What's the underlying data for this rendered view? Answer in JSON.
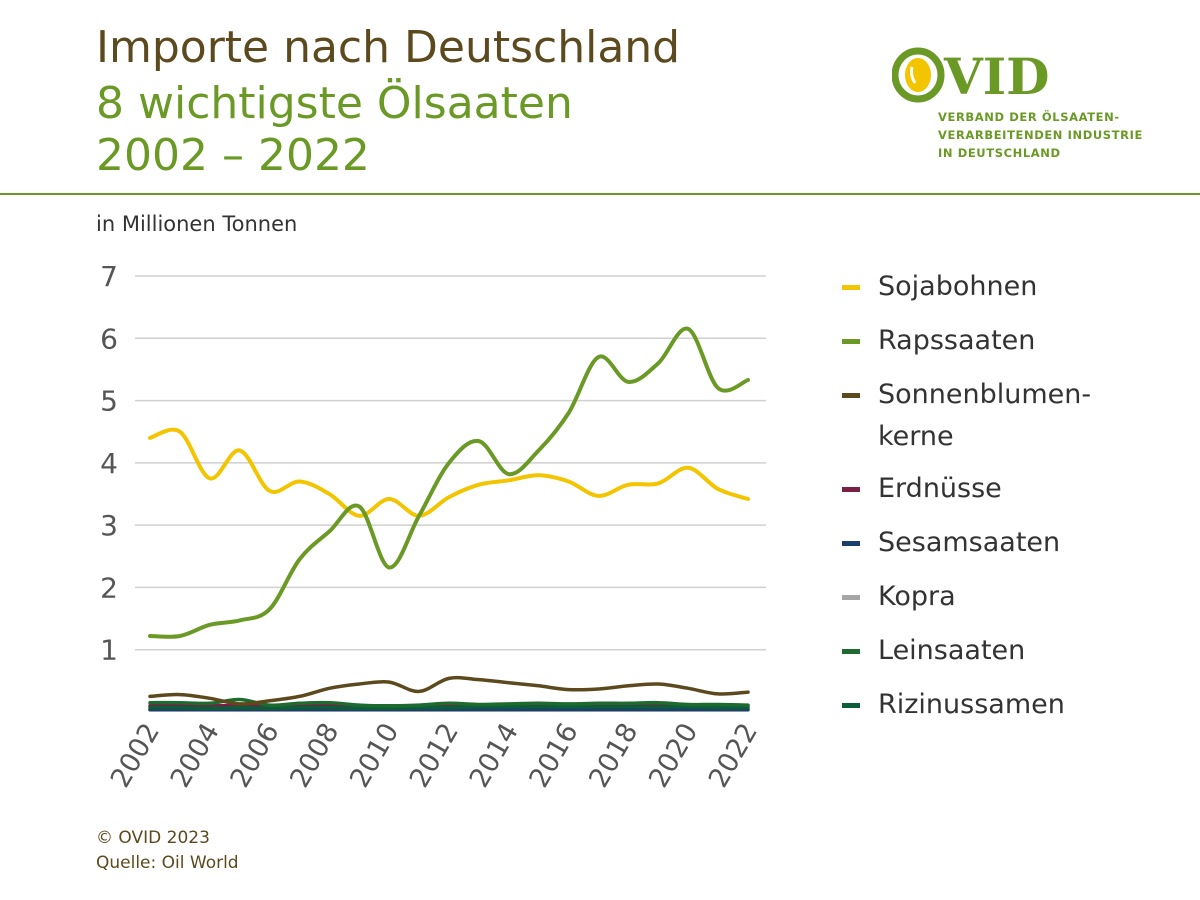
{
  "header": {
    "title_line1": "Importe nach Deutschland",
    "title_line2": "8 wichtigste Ölsaaten",
    "title_line3": "2002 – 2022"
  },
  "logo": {
    "name": "OVID",
    "org_line1": "VERBAND DER ÖLSAATEN-",
    "org_line2": "VERARBEITENDEN INDUSTRIE",
    "org_line3": "IN DEUTSCHLAND"
  },
  "subtitle": "in Millionen Tonnen",
  "footer": {
    "copyright": "© OVID 2023",
    "source": "Quelle: Oil World"
  },
  "chart_data": {
    "type": "line",
    "title": "Importe nach Deutschland – 8 wichtigste Ölsaaten 2002 – 2022",
    "ylabel": "in Millionen Tonnen",
    "xlabel": "",
    "ylim": [
      0,
      7
    ],
    "yticks": [
      1,
      2,
      3,
      4,
      5,
      6,
      7
    ],
    "x": [
      2002,
      2003,
      2004,
      2005,
      2006,
      2007,
      2008,
      2009,
      2010,
      2011,
      2012,
      2013,
      2014,
      2015,
      2016,
      2017,
      2018,
      2019,
      2020,
      2021,
      2022
    ],
    "xtick_labels": [
      "2002",
      "2004",
      "2006",
      "2008",
      "2010",
      "2012",
      "2014",
      "2016",
      "2018",
      "2020",
      "2022"
    ],
    "grid": true,
    "legend_position": "right",
    "series": [
      {
        "name": "Sojabohnen",
        "color": "#f2c500",
        "values": [
          4.4,
          4.5,
          3.75,
          4.2,
          3.55,
          3.7,
          3.5,
          3.15,
          3.42,
          3.15,
          3.45,
          3.65,
          3.72,
          3.8,
          3.7,
          3.47,
          3.65,
          3.67,
          3.92,
          3.58,
          3.42
        ]
      },
      {
        "name": "Rapssaaten",
        "color": "#6a9a25",
        "values": [
          1.22,
          1.22,
          1.4,
          1.47,
          1.65,
          2.45,
          2.9,
          3.3,
          2.32,
          3.15,
          4.0,
          4.35,
          3.82,
          4.2,
          4.8,
          5.7,
          5.3,
          5.6,
          6.15,
          5.2,
          5.33
        ]
      },
      {
        "name": "Sonnenblumen-\nkerne",
        "color": "#5c4a1e",
        "values": [
          0.25,
          0.28,
          0.22,
          0.13,
          0.18,
          0.25,
          0.38,
          0.45,
          0.48,
          0.33,
          0.54,
          0.52,
          0.47,
          0.42,
          0.36,
          0.37,
          0.42,
          0.45,
          0.38,
          0.29,
          0.32
        ]
      },
      {
        "name": "Erdnüsse",
        "color": "#7a1f45",
        "values": [
          0.1,
          0.1,
          0.1,
          0.1,
          0.1,
          0.1,
          0.1,
          0.09,
          0.1,
          0.1,
          0.11,
          0.1,
          0.11,
          0.11,
          0.11,
          0.1,
          0.11,
          0.1,
          0.1,
          0.1,
          0.1
        ]
      },
      {
        "name": "Sesamsaaten",
        "color": "#1a3f6e",
        "values": [
          0.04,
          0.04,
          0.04,
          0.04,
          0.04,
          0.04,
          0.04,
          0.04,
          0.04,
          0.04,
          0.04,
          0.04,
          0.04,
          0.04,
          0.04,
          0.04,
          0.04,
          0.04,
          0.04,
          0.04,
          0.04
        ]
      },
      {
        "name": "Kopra",
        "color": "#a6a6a6",
        "values": [
          0.03,
          0.03,
          0.03,
          0.03,
          0.03,
          0.03,
          0.03,
          0.03,
          0.03,
          0.03,
          0.03,
          0.03,
          0.03,
          0.03,
          0.03,
          0.03,
          0.03,
          0.03,
          0.03,
          0.03,
          0.03
        ]
      },
      {
        "name": "Leinsaaten",
        "color": "#1e6b2f",
        "values": [
          0.15,
          0.15,
          0.14,
          0.2,
          0.11,
          0.14,
          0.15,
          0.11,
          0.1,
          0.11,
          0.14,
          0.12,
          0.13,
          0.14,
          0.13,
          0.14,
          0.14,
          0.15,
          0.12,
          0.12,
          0.11
        ]
      },
      {
        "name": "Rizinussamen",
        "color": "#0d5c3a",
        "values": [
          0.07,
          0.07,
          0.06,
          0.07,
          0.06,
          0.07,
          0.07,
          0.06,
          0.06,
          0.07,
          0.07,
          0.08,
          0.08,
          0.08,
          0.08,
          0.08,
          0.08,
          0.08,
          0.08,
          0.07,
          0.07
        ]
      }
    ]
  }
}
